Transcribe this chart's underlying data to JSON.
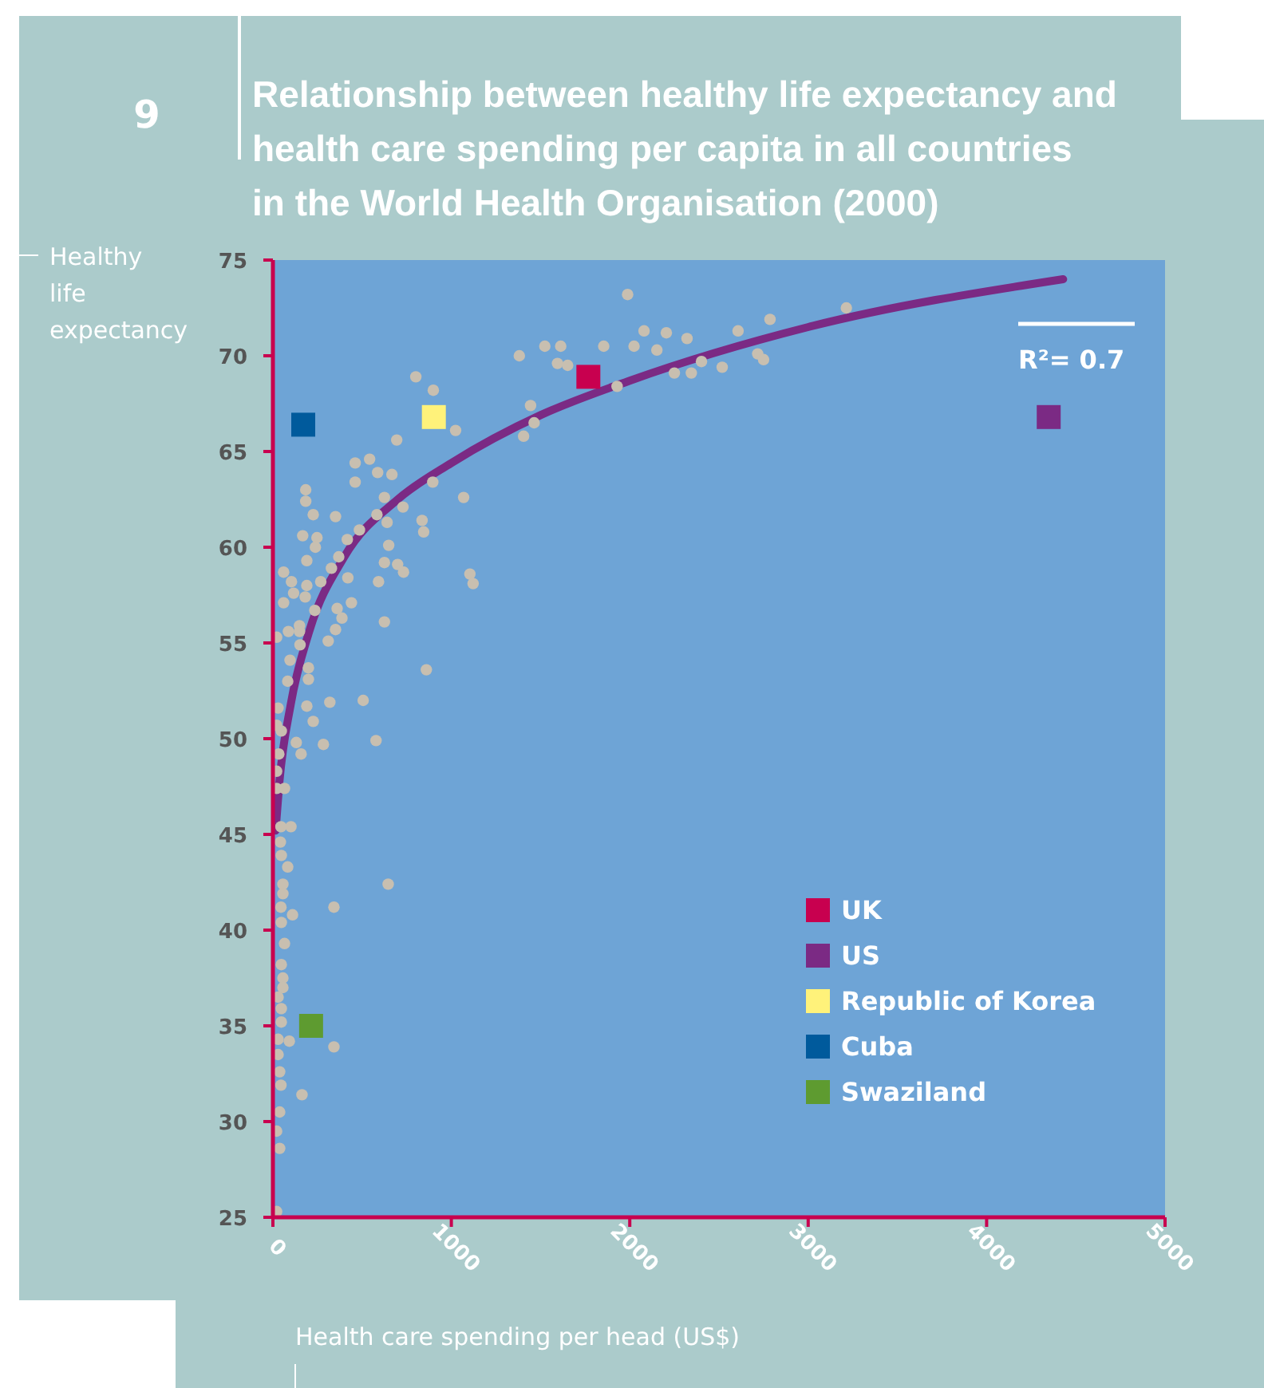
{
  "chart_data": {
    "type": "scatter",
    "title": "Relationship between healthy life expectancy and health care spending per capita in all countries in the World Health Organisation (2000)",
    "xlabel": "Health care spending per head (US$)",
    "ylabel": "Healthy life expectancy",
    "annotations": [
      "9",
      "R²= 0.7"
    ],
    "xlim": [
      0,
      5000
    ],
    "xticks": [
      0,
      1000,
      2000,
      3000,
      4000,
      5000
    ],
    "ylim": [
      25,
      75
    ],
    "yticks": [
      25,
      30,
      35,
      40,
      45,
      50,
      55,
      60,
      65,
      70,
      75
    ],
    "legend": "bottom right",
    "series": [
      {
        "marker": "circle",
        "color": "#c8bfb0",
        "x": [
          1381,
          1524,
          1613,
          1595,
          1652,
          801,
          899,
          1024,
          694,
          1444,
          1464,
          1405,
          461,
          542,
          587,
          667,
          461,
          896,
          184,
          184,
          625,
          729,
          1069,
          226,
          351,
          583,
          640,
          485,
          836,
          845,
          167,
          247,
          238,
          417,
          649,
          369,
          190,
          625,
          699,
          732,
          328,
          60,
          104,
          190,
          268,
          420,
          592,
          1104,
          1122,
          116,
          181,
          60,
          235,
          360,
          440,
          387,
          625,
          21,
          87,
          149,
          149,
          351,
          152,
          310,
          96,
          199,
          199,
          860,
          83,
          29,
          190,
          319,
          506,
          226,
          21,
          47,
          131,
          158,
          283,
          578,
          33,
          21,
          21,
          65,
          101,
          45,
          42,
          47,
          83,
          56,
          56,
          646,
          45,
          342,
          47,
          110,
          65,
          47,
          56,
          56,
          29,
          47,
          47,
          29,
          92,
          342,
          29,
          38,
          45,
          163,
          38,
          21,
          38,
          21,
          1988,
          1854,
          2080,
          2205,
          2024,
          2152,
          2321,
          2402,
          2250,
          2345,
          2518,
          1929,
          2607,
          2786,
          2717,
          2750,
          3214
        ],
        "values": [
          70.0,
          70.5,
          70.5,
          69.6,
          69.5,
          68.9,
          68.2,
          66.1,
          65.6,
          67.4,
          66.5,
          65.8,
          64.4,
          64.6,
          63.9,
          63.8,
          63.4,
          63.4,
          63.0,
          62.4,
          62.6,
          62.1,
          62.6,
          61.7,
          61.6,
          61.7,
          61.3,
          60.9,
          61.4,
          60.8,
          60.6,
          60.5,
          60.0,
          60.4,
          60.1,
          59.5,
          59.3,
          59.2,
          59.1,
          58.7,
          58.9,
          58.7,
          58.2,
          58.0,
          58.2,
          58.4,
          58.2,
          58.6,
          58.1,
          57.6,
          57.4,
          57.1,
          56.7,
          56.8,
          57.1,
          56.3,
          56.1,
          55.3,
          55.6,
          55.9,
          55.6,
          55.7,
          54.9,
          55.1,
          54.1,
          53.7,
          53.1,
          53.6,
          53.0,
          51.6,
          51.7,
          51.9,
          52.0,
          50.9,
          50.7,
          50.4,
          49.8,
          49.2,
          49.7,
          49.9,
          49.2,
          48.3,
          47.4,
          47.4,
          45.4,
          45.4,
          44.6,
          43.9,
          43.3,
          42.4,
          41.9,
          42.4,
          41.2,
          41.2,
          40.4,
          40.8,
          39.3,
          38.2,
          37.5,
          37.0,
          36.5,
          35.9,
          35.2,
          34.3,
          34.2,
          33.9,
          33.5,
          32.6,
          31.9,
          31.4,
          30.5,
          29.5,
          28.6,
          25.3,
          73.2,
          70.5,
          71.3,
          71.2,
          70.5,
          70.3,
          70.9,
          69.7,
          69.1,
          69.1,
          69.4,
          68.4,
          71.3,
          71.9,
          70.1,
          69.8,
          72.5
        ]
      },
      {
        "type": "line",
        "color": "#7b2a84",
        "x": [
          15,
          36,
          100,
          200,
          400,
          700,
          1000,
          1500,
          2000,
          3000,
          4429
        ],
        "values": [
          45.2,
          47.7,
          51.8,
          55.5,
          59.5,
          62.5,
          64.4,
          66.9,
          68.7,
          71.5,
          74.0
        ]
      },
      {
        "type": "scatter",
        "marker": "square",
        "name": "UK",
        "color": "#c8004f",
        "x": [
          1768
        ],
        "values": [
          68.9
        ]
      },
      {
        "type": "scatter",
        "marker": "square",
        "name": "US",
        "color": "#7b2a84",
        "x": [
          4348
        ],
        "values": [
          66.8
        ]
      },
      {
        "type": "scatter",
        "marker": "square",
        "name": "Republic of Korea",
        "color": "#fff27a",
        "x": [
          902
        ],
        "values": [
          66.8
        ]
      },
      {
        "type": "scatter",
        "marker": "square",
        "name": "Cuba",
        "color": "#005a9c",
        "x": [
          170
        ],
        "values": [
          66.4
        ]
      },
      {
        "type": "scatter",
        "marker": "square",
        "name": "Swaziland",
        "color": "#5e9b30",
        "x": [
          214
        ],
        "values": [
          35.0
        ]
      }
    ]
  }
}
